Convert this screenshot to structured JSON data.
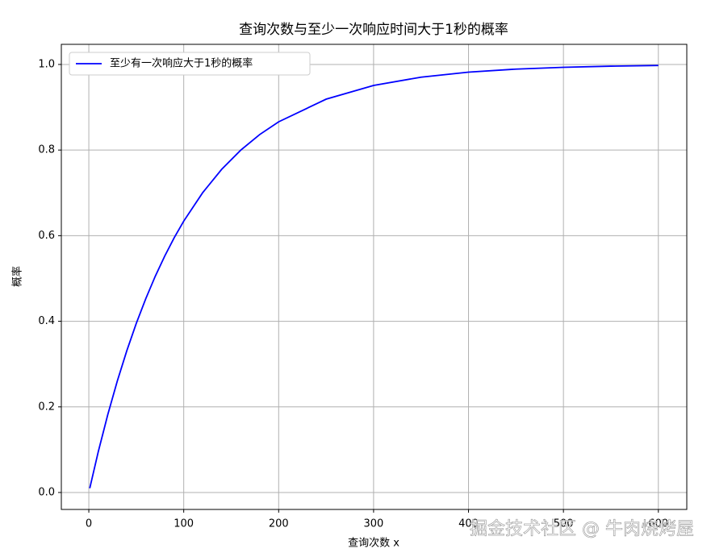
{
  "chart_data": {
    "type": "line",
    "title": "查询次数与至少一次响应时间大于1秒的概率",
    "xlabel": "查询次数 x",
    "ylabel": "概率",
    "x": [
      1,
      10,
      20,
      30,
      40,
      50,
      60,
      70,
      80,
      90,
      100,
      120,
      140,
      160,
      180,
      200,
      250,
      300,
      350,
      400,
      450,
      500,
      550,
      600
    ],
    "series": [
      {
        "name": "至少有一次响应大于1秒的概率",
        "color": "#0000ff",
        "values": [
          0.01,
          0.0956,
          0.1821,
          0.2603,
          0.331,
          0.395,
          0.4528,
          0.5052,
          0.5525,
          0.5953,
          0.634,
          0.7006,
          0.7551,
          0.7997,
          0.8362,
          0.866,
          0.9189,
          0.951,
          0.9703,
          0.982,
          0.9891,
          0.9934,
          0.996,
          0.9976
        ]
      }
    ],
    "xlim": [
      -28.95,
      629.95
    ],
    "ylim": [
      -0.0396,
      1.047
    ],
    "xticks": [
      0,
      100,
      200,
      300,
      400,
      500,
      600
    ],
    "yticks": [
      {
        "value": 0,
        "label": "0.0"
      },
      0.2,
      0.4,
      0.6,
      0.8,
      {
        "value": 1,
        "label": "1.0"
      }
    ],
    "grid": true,
    "legend": "upper-left",
    "watermark": "掘金技术社区 @ 牛肉烧烤屋"
  }
}
